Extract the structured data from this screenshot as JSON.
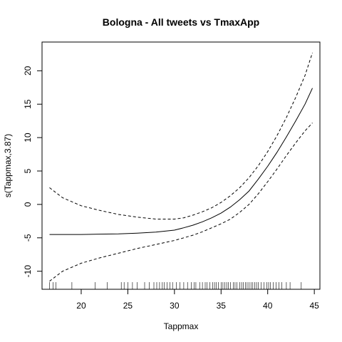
{
  "chart_data": {
    "type": "line",
    "title": "Bologna - All tweets vs TmaxApp",
    "xlabel": "Tappmax",
    "ylabel": "s(Tappmax,3.87)",
    "xlim": [
      15.8,
      45.6
    ],
    "ylim": [
      -12.7,
      24.3
    ],
    "x_ticks": [
      20,
      25,
      30,
      35,
      40,
      45
    ],
    "y_ticks": [
      -10,
      -5,
      0,
      5,
      10,
      15,
      20
    ],
    "x_tick_labels": [
      "20",
      "25",
      "30",
      "35",
      "40",
      "45"
    ],
    "y_tick_labels": [
      "-10",
      "-5",
      "0",
      "5",
      "10",
      "15",
      "20"
    ],
    "grid": false,
    "series": [
      {
        "style": "solid",
        "x": [
          16.6,
          18,
          20,
          22,
          24,
          26,
          28,
          30,
          31,
          32,
          33,
          34,
          35,
          36,
          37,
          38,
          39,
          40,
          41,
          42,
          43,
          44,
          44.8
        ],
        "y": [
          -4.5,
          -4.5,
          -4.5,
          -4.45,
          -4.4,
          -4.3,
          -4.15,
          -3.85,
          -3.5,
          -3.1,
          -2.6,
          -2.0,
          -1.3,
          -0.4,
          0.7,
          2.0,
          3.8,
          5.7,
          7.8,
          10.1,
          12.5,
          15.0,
          17.4
        ]
      },
      {
        "style": "dashed",
        "x": [
          16.6,
          18,
          20,
          22,
          24,
          26,
          28,
          30,
          31,
          32,
          33,
          34,
          35,
          36,
          37,
          38,
          39,
          40,
          41,
          42,
          43,
          44,
          44.8
        ],
        "y": [
          2.5,
          1.0,
          -0.2,
          -0.9,
          -1.5,
          -1.9,
          -2.2,
          -2.2,
          -2.0,
          -1.6,
          -1.1,
          -0.5,
          0.3,
          1.3,
          2.5,
          4.0,
          5.8,
          7.9,
          10.3,
          13.0,
          16.0,
          19.3,
          22.7
        ]
      },
      {
        "style": "dashed",
        "x": [
          16.6,
          18,
          20,
          22,
          24,
          26,
          28,
          30,
          31,
          32,
          33,
          34,
          35,
          36,
          37,
          38,
          39,
          40,
          41,
          42,
          43,
          44,
          44.8
        ],
        "y": [
          -11.5,
          -10.0,
          -8.8,
          -8.0,
          -7.3,
          -6.6,
          -6.0,
          -5.4,
          -5.0,
          -4.6,
          -4.1,
          -3.5,
          -2.9,
          -2.2,
          -1.2,
          0.0,
          1.6,
          3.4,
          5.3,
          7.3,
          9.2,
          11.0,
          12.2
        ]
      }
    ],
    "rug_x": [
      16.6,
      17.0,
      17.3,
      19.0,
      21.5,
      22.8,
      24.3,
      24.6,
      25.0,
      25.5,
      26.0,
      26.8,
      27.3,
      27.8,
      28.1,
      28.4,
      28.7,
      28.9,
      29.2,
      29.5,
      29.8,
      30.2,
      30.6,
      31.0,
      31.4,
      31.8,
      32.1,
      32.3,
      32.7,
      33.0,
      33.3,
      33.5,
      33.8,
      34.1,
      34.3,
      34.5,
      34.7,
      35.0,
      35.2,
      35.4,
      35.6,
      35.8,
      36.0,
      36.3,
      36.5,
      36.7,
      37.0,
      37.2,
      37.4,
      37.6,
      37.8,
      38.0,
      38.2,
      38.4,
      38.6,
      38.8,
      39.0,
      39.3,
      39.6,
      39.9,
      40.1,
      40.3,
      40.6,
      40.9,
      41.2,
      41.5,
      42.0,
      42.4,
      43.6
    ]
  }
}
